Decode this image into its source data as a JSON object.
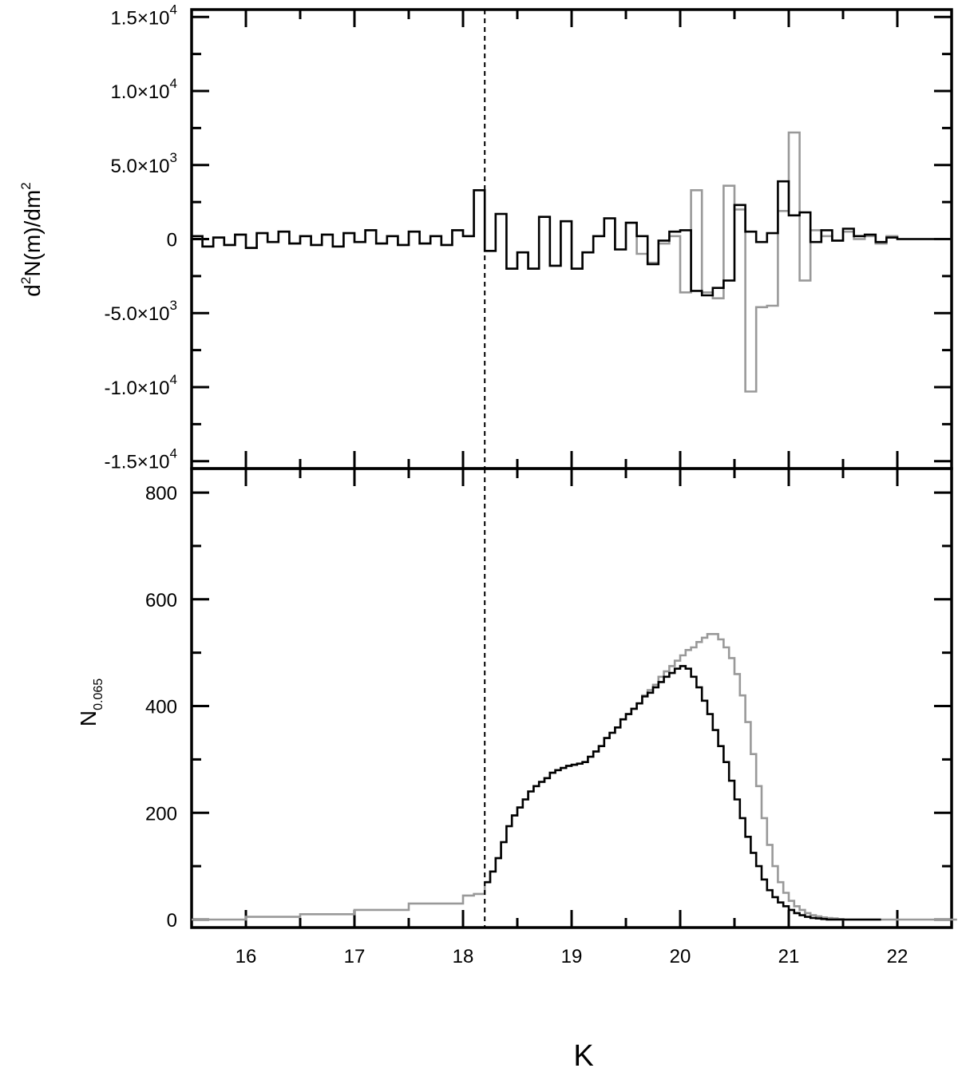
{
  "chart_data": [
    {
      "type": "line",
      "panel": "top",
      "ylabel": {
        "base": "d",
        "sup1": "2",
        "mid": "N(m)/dm",
        "sup2": "2"
      },
      "xlim": [
        15.5,
        22.5
      ],
      "ylim": [
        -15500,
        15500
      ],
      "yticks": [
        {
          "value": 15000,
          "mant": "1.5×10",
          "exp": "4"
        },
        {
          "value": 10000,
          "mant": "1.0×10",
          "exp": "4"
        },
        {
          "value": 5000,
          "mant": "5.0×10",
          "exp": "3"
        },
        {
          "value": 0,
          "mant": "0",
          "exp": ""
        },
        {
          "value": -5000,
          "mant": "-5.0×10",
          "exp": "3"
        },
        {
          "value": -10000,
          "mant": "-1.0×10",
          "exp": "4"
        },
        {
          "value": -15000,
          "mant": "-1.5×10",
          "exp": "4"
        }
      ],
      "vline_x": 18.2,
      "series": [
        {
          "name": "black",
          "color": "#000000",
          "x": [
            15.5,
            15.6,
            15.7,
            15.8,
            15.9,
            16.0,
            16.1,
            16.2,
            16.3,
            16.4,
            16.5,
            16.6,
            16.7,
            16.8,
            16.9,
            17.0,
            17.1,
            17.2,
            17.3,
            17.4,
            17.5,
            17.6,
            17.7,
            17.8,
            17.9,
            18.0,
            18.1,
            18.2,
            18.3,
            18.4,
            18.5,
            18.6,
            18.7,
            18.8,
            18.9,
            19.0,
            19.1,
            19.2,
            19.3,
            19.4,
            19.5,
            19.6,
            19.7,
            19.8,
            19.9,
            20.0,
            20.1,
            20.2,
            20.3,
            20.4,
            20.5,
            20.6,
            20.7,
            20.8,
            20.9,
            21.0,
            21.1,
            21.2,
            21.3,
            21.4,
            21.5,
            21.6,
            21.7,
            21.8,
            21.9,
            22.0,
            22.1,
            22.2,
            22.3,
            22.4
          ],
          "y": [
            200,
            -500,
            100,
            -400,
            300,
            -600,
            400,
            -200,
            500,
            -300,
            200,
            -400,
            300,
            -500,
            400,
            -200,
            600,
            -300,
            200,
            -400,
            500,
            -300,
            200,
            -400,
            600,
            200,
            3300,
            -800,
            1700,
            -2000,
            -900,
            -2000,
            1500,
            -1800,
            1200,
            -2000,
            -900,
            200,
            1400,
            -700,
            1100,
            200,
            -1700,
            -100,
            500,
            600,
            -3500,
            -3800,
            -3300,
            -2800,
            2300,
            500,
            -200,
            400,
            3900,
            1600,
            1800,
            -200,
            600,
            -100,
            700,
            200,
            300,
            -200,
            100,
            0,
            0,
            0,
            0,
            0
          ]
        },
        {
          "name": "gray",
          "color": "#999999",
          "x": [
            15.5,
            15.6,
            15.7,
            15.8,
            15.9,
            16.0,
            16.1,
            16.2,
            16.3,
            16.4,
            16.5,
            16.6,
            16.7,
            16.8,
            16.9,
            17.0,
            17.1,
            17.2,
            17.3,
            17.4,
            17.5,
            17.6,
            17.7,
            17.8,
            17.9,
            18.0,
            18.1,
            18.2,
            18.3,
            18.4,
            18.5,
            18.6,
            18.7,
            18.8,
            18.9,
            19.0,
            19.1,
            19.2,
            19.3,
            19.4,
            19.5,
            19.6,
            19.7,
            19.8,
            19.9,
            20.0,
            20.1,
            20.2,
            20.3,
            20.4,
            20.5,
            20.6,
            20.7,
            20.8,
            20.9,
            21.0,
            21.1,
            21.2,
            21.3,
            21.4,
            21.5,
            21.6,
            21.7,
            21.8,
            21.9,
            22.0,
            22.1,
            22.2,
            22.3,
            22.4
          ],
          "y": [
            200,
            -500,
            100,
            -400,
            300,
            -600,
            400,
            -200,
            500,
            -300,
            200,
            -400,
            300,
            -500,
            400,
            -200,
            600,
            -300,
            200,
            -400,
            500,
            -300,
            200,
            -400,
            600,
            200,
            3300,
            -800,
            1700,
            -2000,
            -900,
            -2000,
            1500,
            -1800,
            1200,
            -2000,
            -900,
            200,
            1400,
            -700,
            1100,
            -1000,
            -1600,
            -300,
            200,
            -3600,
            3300,
            -3600,
            -4000,
            3600,
            2000,
            -10300,
            -4600,
            -4500,
            1900,
            7200,
            -2800,
            600,
            200,
            -100,
            500,
            0,
            200,
            -300,
            200,
            0,
            0,
            0,
            0,
            0
          ]
        }
      ]
    },
    {
      "type": "line",
      "panel": "bottom",
      "ylabel": {
        "base": "N",
        "sub": "0.065"
      },
      "xlabel": "K",
      "xlim": [
        15.5,
        22.5
      ],
      "ylim": [
        -15,
        845
      ],
      "xticks": [
        16,
        17,
        18,
        19,
        20,
        21,
        22
      ],
      "yticks": [
        0,
        200,
        400,
        600,
        800
      ],
      "vline_x": 18.2,
      "series": [
        {
          "name": "black",
          "color": "#000000",
          "x": [
            18.2,
            18.25,
            18.3,
            18.35,
            18.4,
            18.45,
            18.5,
            18.55,
            18.6,
            18.65,
            18.7,
            18.75,
            18.8,
            18.85,
            18.9,
            18.95,
            19.0,
            19.05,
            19.1,
            19.15,
            19.2,
            19.25,
            19.3,
            19.35,
            19.4,
            19.45,
            19.5,
            19.55,
            19.6,
            19.65,
            19.7,
            19.75,
            19.8,
            19.85,
            19.9,
            19.95,
            20.0,
            20.05,
            20.1,
            20.15,
            20.2,
            20.25,
            20.3,
            20.35,
            20.4,
            20.45,
            20.5,
            20.55,
            20.6,
            20.65,
            20.7,
            20.75,
            20.8,
            20.85,
            20.9,
            20.95,
            21.0,
            21.05,
            21.1,
            21.15,
            21.2,
            21.25,
            21.3,
            21.35,
            21.4,
            21.45,
            21.5,
            21.55,
            21.6,
            21.65,
            21.7,
            21.75,
            21.8
          ],
          "y": [
            70,
            90,
            115,
            145,
            175,
            195,
            210,
            225,
            240,
            250,
            258,
            265,
            275,
            280,
            284,
            288,
            290,
            292,
            295,
            305,
            315,
            325,
            340,
            350,
            360,
            375,
            385,
            395,
            405,
            418,
            425,
            435,
            445,
            455,
            462,
            470,
            475,
            470,
            455,
            435,
            410,
            385,
            355,
            325,
            295,
            260,
            225,
            190,
            155,
            125,
            100,
            75,
            55,
            42,
            32,
            25,
            18,
            12,
            8,
            5,
            3,
            2,
            1,
            0,
            0,
            0,
            0,
            0,
            0,
            0,
            0,
            0,
            0
          ]
        },
        {
          "name": "gray",
          "color": "#999999",
          "x": [
            15.5,
            16.0,
            16.5,
            17.0,
            17.5,
            18.0,
            18.1,
            18.2,
            18.25,
            18.3,
            18.35,
            18.4,
            18.45,
            18.5,
            18.55,
            18.6,
            18.65,
            18.7,
            18.75,
            18.8,
            18.85,
            18.9,
            18.95,
            19.0,
            19.05,
            19.1,
            19.15,
            19.2,
            19.25,
            19.3,
            19.35,
            19.4,
            19.45,
            19.5,
            19.55,
            19.6,
            19.65,
            19.7,
            19.75,
            19.8,
            19.85,
            19.9,
            19.95,
            20.0,
            20.05,
            20.1,
            20.15,
            20.2,
            20.25,
            20.3,
            20.35,
            20.4,
            20.45,
            20.5,
            20.55,
            20.6,
            20.65,
            20.7,
            20.75,
            20.8,
            20.85,
            20.9,
            20.95,
            21.0,
            21.05,
            21.1,
            21.15,
            21.2,
            21.25,
            21.3,
            21.35,
            21.4,
            21.45,
            21.5,
            21.6,
            21.7,
            21.8,
            21.9,
            22.0,
            22.5
          ],
          "y": [
            0,
            5,
            10,
            18,
            30,
            45,
            48,
            70,
            90,
            115,
            145,
            175,
            195,
            210,
            225,
            240,
            250,
            258,
            265,
            275,
            280,
            284,
            288,
            290,
            292,
            295,
            305,
            315,
            325,
            340,
            350,
            360,
            375,
            385,
            395,
            405,
            420,
            430,
            440,
            455,
            465,
            475,
            485,
            495,
            505,
            510,
            520,
            528,
            535,
            535,
            525,
            510,
            490,
            460,
            420,
            370,
            310,
            250,
            190,
            140,
            100,
            70,
            50,
            35,
            25,
            18,
            12,
            8,
            6,
            4,
            3,
            2,
            1,
            0,
            0,
            0,
            0,
            0,
            0,
            0
          ]
        }
      ]
    }
  ]
}
